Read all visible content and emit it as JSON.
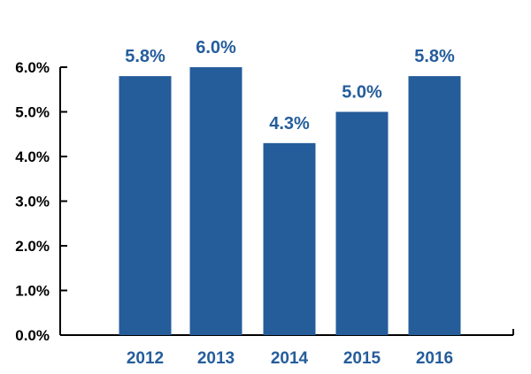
{
  "chart_data": {
    "type": "bar",
    "title": "",
    "xlabel": "",
    "ylabel": "",
    "categories": [
      "2012",
      "2013",
      "2014",
      "2015",
      "2016"
    ],
    "values": [
      5.8,
      6.0,
      4.3,
      5.0,
      5.8
    ],
    "data_labels": [
      "5.8%",
      "6.0%",
      "4.3%",
      "5.0%",
      "5.8%"
    ],
    "ylim": [
      0,
      6
    ],
    "yticks": [
      0,
      1,
      2,
      3,
      4,
      5,
      6
    ],
    "ytick_labels": [
      "0.0%",
      "1.0%",
      "2.0%",
      "3.0%",
      "4.0%",
      "5.0%",
      "6.0%"
    ],
    "grid": false,
    "legend": "none",
    "colors": {
      "bar": "#255d9b",
      "label": "#255d9b",
      "axis": "#000000"
    }
  }
}
